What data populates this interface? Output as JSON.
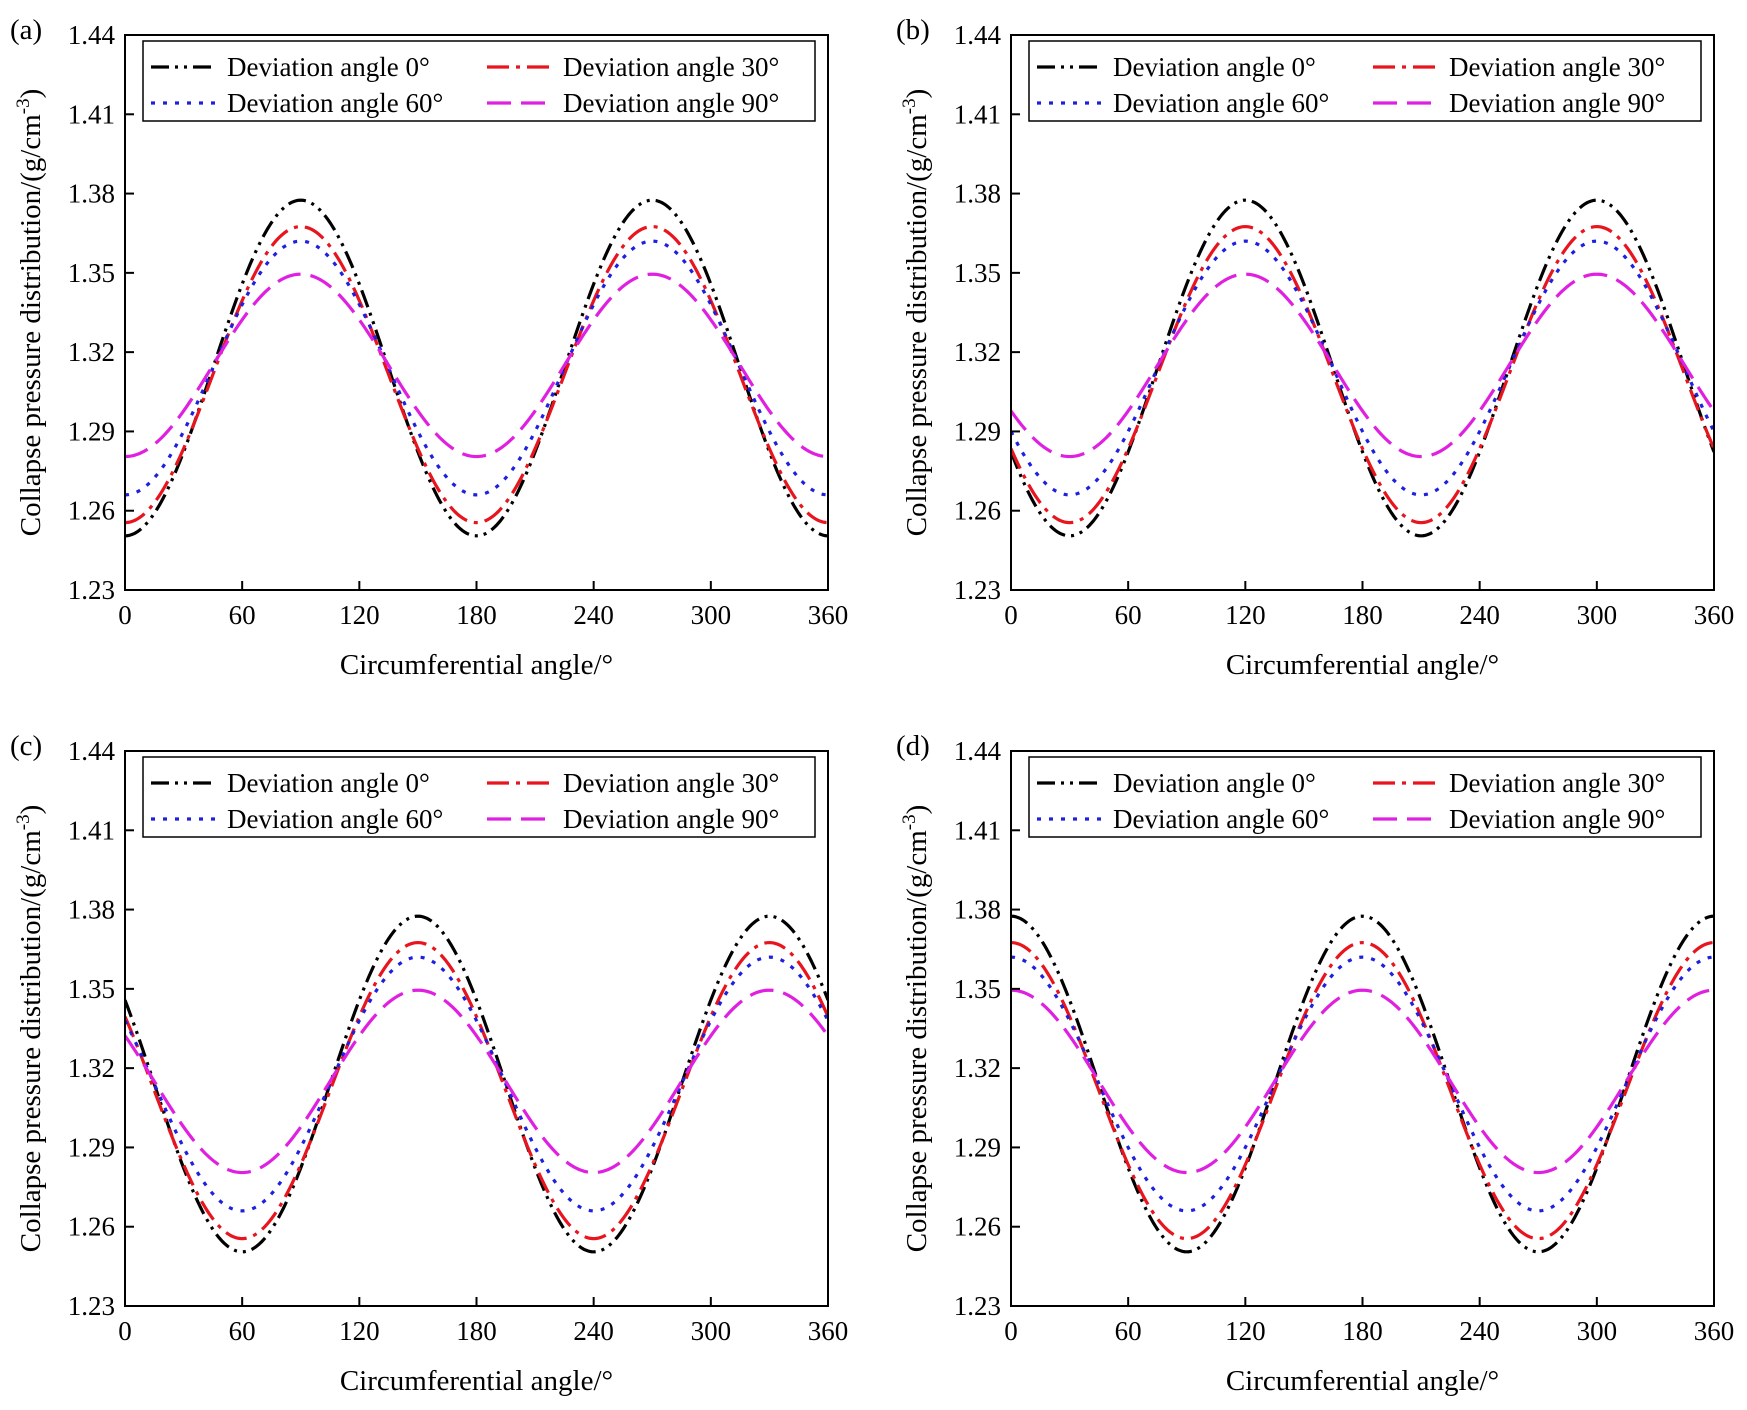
{
  "chart_data": [
    {
      "type": "line",
      "panel_label": "(a)",
      "xlabel": "Circumferential angle/°",
      "ylabel": "Collapse pressure distribution/(g/cm",
      "ylabel_sup": "-3",
      "ylabel_end": ")",
      "xlim": [
        0,
        360
      ],
      "ylim": [
        1.23,
        1.44
      ],
      "xticks": [
        "0",
        "60",
        "120",
        "180",
        "240",
        "300",
        "360"
      ],
      "yticks": [
        "1.23",
        "1.26",
        "1.29",
        "1.32",
        "1.35",
        "1.38",
        "1.41",
        "1.44"
      ],
      "phase_deg": 0,
      "series": [
        {
          "name": "Deviation angle 0°",
          "color": "#000000",
          "dash": "dashdotdot",
          "mean": 1.314,
          "amplitude": 0.0635
        },
        {
          "name": "Deviation angle 30°",
          "color": "#e8141e",
          "dash": "dashdot",
          "mean": 1.3115,
          "amplitude": 0.056
        },
        {
          "name": "Deviation angle 60°",
          "color": "#1f1fe0",
          "dash": "dotted",
          "mean": 1.314,
          "amplitude": 0.048
        },
        {
          "name": "Deviation angle 90°",
          "color": "#e020e0",
          "dash": "dashed",
          "mean": 1.315,
          "amplitude": 0.0345
        }
      ]
    },
    {
      "type": "line",
      "panel_label": "(b)",
      "xlabel": "Circumferential angle/°",
      "ylabel": "Collapse pressure distribution/(g/cm",
      "ylabel_sup": "-3",
      "ylabel_end": ")",
      "xlim": [
        0,
        360
      ],
      "ylim": [
        1.23,
        1.44
      ],
      "xticks": [
        "0",
        "60",
        "120",
        "180",
        "240",
        "300",
        "360"
      ],
      "yticks": [
        "1.23",
        "1.26",
        "1.29",
        "1.32",
        "1.35",
        "1.38",
        "1.41",
        "1.44"
      ],
      "phase_deg": 30,
      "series": [
        {
          "name": "Deviation angle 0°",
          "color": "#000000",
          "dash": "dashdotdot",
          "mean": 1.314,
          "amplitude": 0.0635
        },
        {
          "name": "Deviation angle 30°",
          "color": "#e8141e",
          "dash": "dashdot",
          "mean": 1.3115,
          "amplitude": 0.056
        },
        {
          "name": "Deviation angle 60°",
          "color": "#1f1fe0",
          "dash": "dotted",
          "mean": 1.314,
          "amplitude": 0.048
        },
        {
          "name": "Deviation angle 90°",
          "color": "#e020e0",
          "dash": "dashed",
          "mean": 1.315,
          "amplitude": 0.0345
        }
      ]
    },
    {
      "type": "line",
      "panel_label": "(c)",
      "xlabel": "Circumferential angle/°",
      "ylabel": "Collapse pressure distribution/(g/cm",
      "ylabel_sup": "-3",
      "ylabel_end": ")",
      "xlim": [
        0,
        360
      ],
      "ylim": [
        1.23,
        1.44
      ],
      "xticks": [
        "0",
        "60",
        "120",
        "180",
        "240",
        "300",
        "360"
      ],
      "yticks": [
        "1.23",
        "1.26",
        "1.29",
        "1.32",
        "1.35",
        "1.38",
        "1.41",
        "1.44"
      ],
      "phase_deg": 60,
      "series": [
        {
          "name": "Deviation angle 0°",
          "color": "#000000",
          "dash": "dashdotdot",
          "mean": 1.314,
          "amplitude": 0.0635
        },
        {
          "name": "Deviation angle 30°",
          "color": "#e8141e",
          "dash": "dashdot",
          "mean": 1.3115,
          "amplitude": 0.056
        },
        {
          "name": "Deviation angle 60°",
          "color": "#1f1fe0",
          "dash": "dotted",
          "mean": 1.314,
          "amplitude": 0.048
        },
        {
          "name": "Deviation angle 90°",
          "color": "#e020e0",
          "dash": "dashed",
          "mean": 1.315,
          "amplitude": 0.0345
        }
      ]
    },
    {
      "type": "line",
      "panel_label": "(d)",
      "xlabel": "Circumferential angle/°",
      "ylabel": "Collapse pressure distribution/(g/cm",
      "ylabel_sup": "-3",
      "ylabel_end": ")",
      "xlim": [
        0,
        360
      ],
      "ylim": [
        1.23,
        1.44
      ],
      "xticks": [
        "0",
        "60",
        "120",
        "180",
        "240",
        "300",
        "360"
      ],
      "yticks": [
        "1.23",
        "1.26",
        "1.29",
        "1.32",
        "1.35",
        "1.38",
        "1.41",
        "1.44"
      ],
      "phase_deg": 90,
      "series": [
        {
          "name": "Deviation angle 0°",
          "color": "#000000",
          "dash": "dashdotdot",
          "mean": 1.314,
          "amplitude": 0.0635
        },
        {
          "name": "Deviation angle 30°",
          "color": "#e8141e",
          "dash": "dashdot",
          "mean": 1.3115,
          "amplitude": 0.056
        },
        {
          "name": "Deviation angle 60°",
          "color": "#1f1fe0",
          "dash": "dotted",
          "mean": 1.314,
          "amplitude": 0.048
        },
        {
          "name": "Deviation angle 90°",
          "color": "#e020e0",
          "dash": "dashed",
          "mean": 1.315,
          "amplitude": 0.0345
        }
      ]
    }
  ]
}
